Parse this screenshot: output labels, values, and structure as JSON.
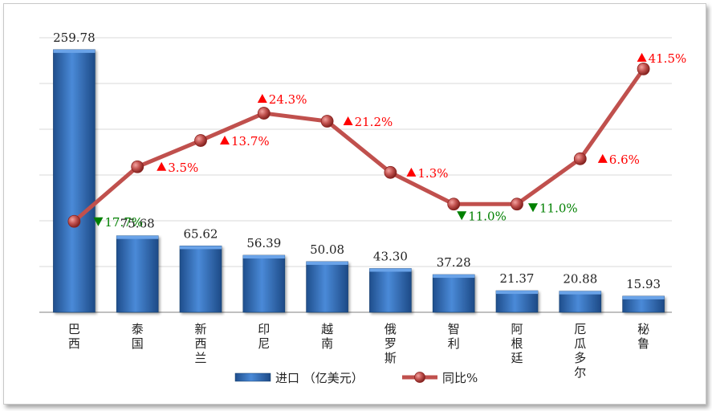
{
  "chart_data": {
    "type": "bar",
    "categories": [
      "巴西",
      "泰国",
      "新西兰",
      "印尼",
      "越南",
      "俄罗斯",
      "智利",
      "阿根廷",
      "厄瓜多尔",
      "秘鲁"
    ],
    "series": [
      {
        "name": "进口（亿美元）",
        "type": "bar",
        "values": [
          259.78,
          75.68,
          65.62,
          56.39,
          50.08,
          43.3,
          37.28,
          21.37,
          20.88,
          15.93
        ],
        "labels": [
          "259.78",
          "75.68",
          "65.62",
          "56.39",
          "50.08",
          "43.30",
          "37.28",
          "21.37",
          "20.88",
          "15.93"
        ],
        "color": "#3a76c4"
      },
      {
        "name": "同比%",
        "type": "line",
        "values": [
          -17.7,
          3.5,
          13.7,
          24.3,
          21.2,
          1.3,
          -11.0,
          -11.0,
          6.6,
          41.5
        ],
        "labels": [
          "17.7%",
          "3.5%",
          "13.7%",
          "24.3%",
          "21.2%",
          "1.3%",
          "11.0%",
          "11.0%",
          "6.6%",
          "41.5%"
        ],
        "color": "#c0504d"
      }
    ],
    "legend": {
      "position": "bottom",
      "bar_label": "进口 （亿美元）",
      "line_label": "同比%"
    },
    "grid": true,
    "colors": {
      "up": "#ff0000",
      "down": "#008000",
      "grid": "#d9d9d9"
    }
  }
}
